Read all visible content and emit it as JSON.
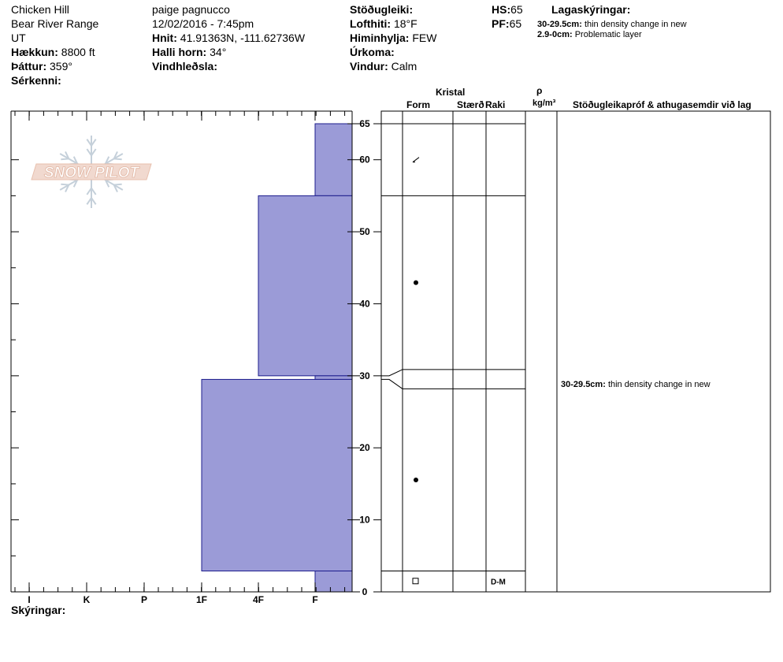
{
  "header": {
    "col1": {
      "site": "Chicken Hill",
      "range": "Bear River Range",
      "state": "UT",
      "elevation_label": "Hækkun:",
      "elevation": "8800 ft",
      "aspect_label": "Þáttur:",
      "aspect": "359°",
      "features_label": "Sérkenni:"
    },
    "col2": {
      "observer": "paige pagnucco",
      "datetime": "12/02/2016 - 7:45pm",
      "coords_label": "Hnit:",
      "coords": "41.91363N, -111.62736W",
      "slope_label": "Halli horn:",
      "slope": "34°",
      "wind_loading_label": "Vindhleðsla:"
    },
    "col3": {
      "stability_label": "Stöðugleiki:",
      "air_temp_label": "Lofthiti:",
      "air_temp": "18°F",
      "sky_label": "Himinhylja:",
      "sky": "FEW",
      "precip_label": "Úrkoma:",
      "wind_label": "Vindur:",
      "wind": "Calm"
    },
    "col4": {
      "hs_label": "HS:",
      "hs": "65",
      "pf_label": "PF:",
      "pf": "65"
    },
    "legend": {
      "title": "Lagaskýringar:",
      "items": [
        {
          "range": "30-29.5cm:",
          "text": "thin density change in new"
        },
        {
          "range": "2.9-0cm:",
          "text": "Problematic layer"
        }
      ]
    }
  },
  "logo": {
    "text": "SNOW PILOT"
  },
  "column_headers": {
    "kristal": "Kristal",
    "form": "Form",
    "size": "Stærð",
    "moisture": "Raki",
    "rho": "ρ",
    "rho_unit": "kg/m³",
    "tests": "Stöðugleikapróf & athugasemdir við lag"
  },
  "footer": {
    "notes_label": "Skýringar:"
  },
  "colors": {
    "hardness_fill": "#9b9bd7",
    "hardness_stroke": "#1c1c8c"
  },
  "chart_data": {
    "type": "snow-profile",
    "hardness_scale": [
      "I",
      "K",
      "P",
      "1F",
      "4F",
      "F"
    ],
    "depth_range": [
      0,
      65
    ],
    "depth_ticks": [
      0,
      10,
      20,
      30,
      40,
      50,
      60,
      65
    ],
    "hardness_layers": [
      {
        "top": 65,
        "bottom": 55,
        "hardness": "F"
      },
      {
        "top": 55,
        "bottom": 30,
        "hardness": "4F"
      },
      {
        "top": 30,
        "bottom": 29.5,
        "hardness": "F"
      },
      {
        "top": 29.5,
        "bottom": 2.9,
        "hardness": "1F"
      },
      {
        "top": 2.9,
        "bottom": 0,
        "hardness": "F"
      }
    ],
    "layer_table": [
      {
        "top": 65,
        "bottom": 55,
        "form_symbol": "slash",
        "size": "",
        "moisture": ""
      },
      {
        "top": 55,
        "bottom": 30,
        "form_symbol": "dot",
        "size": "",
        "moisture": ""
      },
      {
        "top": 30,
        "bottom": 29.5,
        "form_symbol": "",
        "size": "",
        "moisture": ""
      },
      {
        "top": 29.5,
        "bottom": 2.9,
        "form_symbol": "dot",
        "size": "",
        "moisture": ""
      },
      {
        "top": 2.9,
        "bottom": 0,
        "form_symbol": "square",
        "size": "",
        "moisture": "D-M"
      }
    ],
    "comments": [
      {
        "depth": 29.75,
        "range": "30-29.5cm:",
        "text": "thin density change in new"
      }
    ]
  }
}
